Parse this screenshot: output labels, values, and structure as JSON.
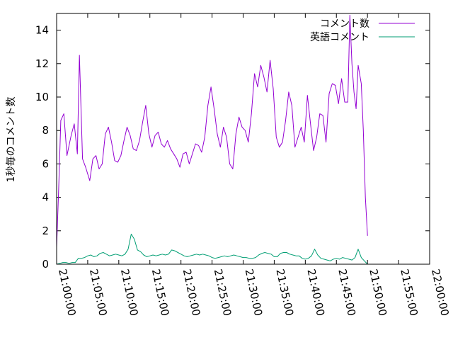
{
  "chart_data": {
    "type": "line",
    "ylabel": "1秒毎のコメント数",
    "ylim": [
      0,
      15
    ],
    "yticks": [
      0,
      2,
      4,
      6,
      8,
      10,
      12,
      14
    ],
    "xlim": [
      "21:00:00",
      "22:00:00"
    ],
    "xticks": [
      "21:00:00",
      "21:05:00",
      "21:10:00",
      "21:15:00",
      "21:20:00",
      "21:25:00",
      "21:30:00",
      "21:35:00",
      "21:40:00",
      "21:45:00",
      "21:50:00",
      "21:55:00",
      "22:00:00"
    ],
    "legend_position": "top-right",
    "grid": false,
    "series": [
      {
        "name": "コメント数",
        "color": "#9400d3",
        "points": [
          [
            "21:00:00",
            1.0
          ],
          [
            "21:00:20",
            4.5
          ],
          [
            "21:00:40",
            8.6
          ],
          [
            "21:01:10",
            9.0
          ],
          [
            "21:01:40",
            6.5
          ],
          [
            "21:02:20",
            7.7
          ],
          [
            "21:02:50",
            8.4
          ],
          [
            "21:03:20",
            6.6
          ],
          [
            "21:03:40",
            12.5
          ],
          [
            "21:04:10",
            6.3
          ],
          [
            "21:04:40",
            5.8
          ],
          [
            "21:05:20",
            5.0
          ],
          [
            "21:05:50",
            6.3
          ],
          [
            "21:06:20",
            6.5
          ],
          [
            "21:06:50",
            5.7
          ],
          [
            "21:07:20",
            6.0
          ],
          [
            "21:07:50",
            7.8
          ],
          [
            "21:08:20",
            8.2
          ],
          [
            "21:08:50",
            7.3
          ],
          [
            "21:09:20",
            6.2
          ],
          [
            "21:09:50",
            6.1
          ],
          [
            "21:10:20",
            6.5
          ],
          [
            "21:10:50",
            7.4
          ],
          [
            "21:11:20",
            8.2
          ],
          [
            "21:11:50",
            7.7
          ],
          [
            "21:12:20",
            6.9
          ],
          [
            "21:12:50",
            6.8
          ],
          [
            "21:13:20",
            7.4
          ],
          [
            "21:13:50",
            8.5
          ],
          [
            "21:14:20",
            9.5
          ],
          [
            "21:14:50",
            7.8
          ],
          [
            "21:15:20",
            7.0
          ],
          [
            "21:15:50",
            7.7
          ],
          [
            "21:16:20",
            7.9
          ],
          [
            "21:16:50",
            7.2
          ],
          [
            "21:17:20",
            7.0
          ],
          [
            "21:17:50",
            7.4
          ],
          [
            "21:18:20",
            6.9
          ],
          [
            "21:18:50",
            6.6
          ],
          [
            "21:19:20",
            6.3
          ],
          [
            "21:19:50",
            5.8
          ],
          [
            "21:20:20",
            6.6
          ],
          [
            "21:20:50",
            6.7
          ],
          [
            "21:21:20",
            6.0
          ],
          [
            "21:21:50",
            6.6
          ],
          [
            "21:22:20",
            7.2
          ],
          [
            "21:22:50",
            7.1
          ],
          [
            "21:23:20",
            6.7
          ],
          [
            "21:23:50",
            7.6
          ],
          [
            "21:24:20",
            9.5
          ],
          [
            "21:24:50",
            10.6
          ],
          [
            "21:25:20",
            9.3
          ],
          [
            "21:25:50",
            7.8
          ],
          [
            "21:26:20",
            7.0
          ],
          [
            "21:26:50",
            8.2
          ],
          [
            "21:27:20",
            7.6
          ],
          [
            "21:27:50",
            6.0
          ],
          [
            "21:28:20",
            5.7
          ],
          [
            "21:28:50",
            7.8
          ],
          [
            "21:29:20",
            8.8
          ],
          [
            "21:29:50",
            8.2
          ],
          [
            "21:30:20",
            8.0
          ],
          [
            "21:30:50",
            7.3
          ],
          [
            "21:31:20",
            9.0
          ],
          [
            "21:31:50",
            11.4
          ],
          [
            "21:32:20",
            10.6
          ],
          [
            "21:32:50",
            11.9
          ],
          [
            "21:33:20",
            11.2
          ],
          [
            "21:33:50",
            10.3
          ],
          [
            "21:34:20",
            12.2
          ],
          [
            "21:34:50",
            10.5
          ],
          [
            "21:35:20",
            7.6
          ],
          [
            "21:35:50",
            7.0
          ],
          [
            "21:36:20",
            7.3
          ],
          [
            "21:36:50",
            8.6
          ],
          [
            "21:37:20",
            10.3
          ],
          [
            "21:37:50",
            9.5
          ],
          [
            "21:38:20",
            7.0
          ],
          [
            "21:38:50",
            7.6
          ],
          [
            "21:39:20",
            8.2
          ],
          [
            "21:39:50",
            7.3
          ],
          [
            "21:40:20",
            10.1
          ],
          [
            "21:40:50",
            8.4
          ],
          [
            "21:41:20",
            6.8
          ],
          [
            "21:41:50",
            7.6
          ],
          [
            "21:42:20",
            9.0
          ],
          [
            "21:42:50",
            8.9
          ],
          [
            "21:43:20",
            7.3
          ],
          [
            "21:43:50",
            10.2
          ],
          [
            "21:44:20",
            10.8
          ],
          [
            "21:44:50",
            10.7
          ],
          [
            "21:45:20",
            9.6
          ],
          [
            "21:45:50",
            11.1
          ],
          [
            "21:46:20",
            9.7
          ],
          [
            "21:46:50",
            9.7
          ],
          [
            "21:47:10",
            14.9
          ],
          [
            "21:47:30",
            12.0
          ],
          [
            "21:47:50",
            10.3
          ],
          [
            "21:48:10",
            9.3
          ],
          [
            "21:48:30",
            11.9
          ],
          [
            "21:49:00",
            10.8
          ],
          [
            "21:49:20",
            8.0
          ],
          [
            "21:49:40",
            4.0
          ],
          [
            "21:50:00",
            1.7
          ]
        ]
      },
      {
        "name": "英語コメント",
        "color": "#009e73",
        "points": [
          [
            "21:00:00",
            0.0
          ],
          [
            "21:00:30",
            0.05
          ],
          [
            "21:01:00",
            0.1
          ],
          [
            "21:01:30",
            0.1
          ],
          [
            "21:02:00",
            0.05
          ],
          [
            "21:02:30",
            0.1
          ],
          [
            "21:03:00",
            0.1
          ],
          [
            "21:03:30",
            0.35
          ],
          [
            "21:04:00",
            0.35
          ],
          [
            "21:04:30",
            0.4
          ],
          [
            "21:05:00",
            0.5
          ],
          [
            "21:05:30",
            0.55
          ],
          [
            "21:06:00",
            0.45
          ],
          [
            "21:06:30",
            0.5
          ],
          [
            "21:07:00",
            0.65
          ],
          [
            "21:07:30",
            0.7
          ],
          [
            "21:08:00",
            0.6
          ],
          [
            "21:08:30",
            0.5
          ],
          [
            "21:09:00",
            0.55
          ],
          [
            "21:09:30",
            0.6
          ],
          [
            "21:10:00",
            0.55
          ],
          [
            "21:10:30",
            0.5
          ],
          [
            "21:11:00",
            0.6
          ],
          [
            "21:11:30",
            0.9
          ],
          [
            "21:12:00",
            1.8
          ],
          [
            "21:12:30",
            1.5
          ],
          [
            "21:13:00",
            0.85
          ],
          [
            "21:13:30",
            0.75
          ],
          [
            "21:14:00",
            0.55
          ],
          [
            "21:14:30",
            0.45
          ],
          [
            "21:15:00",
            0.5
          ],
          [
            "21:15:30",
            0.55
          ],
          [
            "21:16:00",
            0.5
          ],
          [
            "21:16:30",
            0.55
          ],
          [
            "21:17:00",
            0.6
          ],
          [
            "21:17:30",
            0.55
          ],
          [
            "21:18:00",
            0.6
          ],
          [
            "21:18:30",
            0.85
          ],
          [
            "21:19:00",
            0.8
          ],
          [
            "21:19:30",
            0.7
          ],
          [
            "21:20:00",
            0.6
          ],
          [
            "21:20:30",
            0.5
          ],
          [
            "21:21:00",
            0.45
          ],
          [
            "21:21:30",
            0.5
          ],
          [
            "21:22:00",
            0.55
          ],
          [
            "21:22:30",
            0.6
          ],
          [
            "21:23:00",
            0.55
          ],
          [
            "21:23:30",
            0.6
          ],
          [
            "21:24:00",
            0.55
          ],
          [
            "21:24:30",
            0.5
          ],
          [
            "21:25:00",
            0.4
          ],
          [
            "21:25:30",
            0.35
          ],
          [
            "21:26:00",
            0.4
          ],
          [
            "21:26:30",
            0.45
          ],
          [
            "21:27:00",
            0.5
          ],
          [
            "21:27:30",
            0.45
          ],
          [
            "21:28:00",
            0.5
          ],
          [
            "21:28:30",
            0.55
          ],
          [
            "21:29:00",
            0.5
          ],
          [
            "21:29:30",
            0.45
          ],
          [
            "21:30:00",
            0.4
          ],
          [
            "21:30:30",
            0.4
          ],
          [
            "21:31:00",
            0.35
          ],
          [
            "21:31:30",
            0.35
          ],
          [
            "21:32:00",
            0.4
          ],
          [
            "21:32:30",
            0.55
          ],
          [
            "21:33:00",
            0.65
          ],
          [
            "21:33:30",
            0.7
          ],
          [
            "21:34:00",
            0.65
          ],
          [
            "21:34:30",
            0.6
          ],
          [
            "21:35:00",
            0.45
          ],
          [
            "21:35:30",
            0.45
          ],
          [
            "21:36:00",
            0.65
          ],
          [
            "21:36:30",
            0.7
          ],
          [
            "21:37:00",
            0.7
          ],
          [
            "21:37:30",
            0.6
          ],
          [
            "21:38:00",
            0.55
          ],
          [
            "21:38:30",
            0.5
          ],
          [
            "21:39:00",
            0.5
          ],
          [
            "21:39:30",
            0.35
          ],
          [
            "21:40:00",
            0.3
          ],
          [
            "21:40:30",
            0.35
          ],
          [
            "21:41:00",
            0.5
          ],
          [
            "21:41:30",
            0.9
          ],
          [
            "21:42:00",
            0.55
          ],
          [
            "21:42:30",
            0.35
          ],
          [
            "21:43:00",
            0.3
          ],
          [
            "21:43:30",
            0.25
          ],
          [
            "21:44:00",
            0.2
          ],
          [
            "21:44:30",
            0.3
          ],
          [
            "21:45:00",
            0.35
          ],
          [
            "21:45:30",
            0.3
          ],
          [
            "21:46:00",
            0.4
          ],
          [
            "21:46:30",
            0.35
          ],
          [
            "21:47:00",
            0.3
          ],
          [
            "21:47:30",
            0.25
          ],
          [
            "21:48:00",
            0.4
          ],
          [
            "21:48:30",
            0.9
          ],
          [
            "21:49:00",
            0.4
          ],
          [
            "21:49:30",
            0.2
          ],
          [
            "21:50:00",
            0.0
          ]
        ]
      }
    ]
  }
}
